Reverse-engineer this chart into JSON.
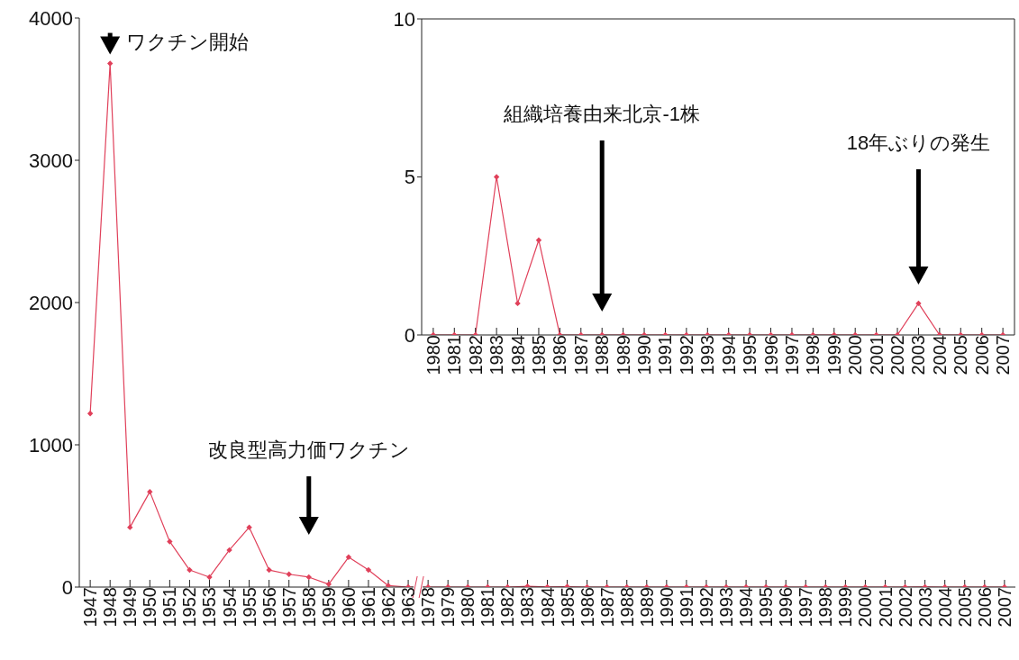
{
  "chart_data": [
    {
      "type": "line",
      "categories": [
        "1947",
        "1948",
        "1949",
        "1950",
        "1951",
        "1952",
        "1953",
        "1954",
        "1955",
        "1956",
        "1957",
        "1958",
        "1959",
        "1960",
        "1961",
        "1962",
        "1963",
        "1978",
        "1979",
        "1980",
        "1981",
        "1982",
        "1983",
        "1984",
        "1985",
        "1986",
        "1987",
        "1988",
        "1989",
        "1990",
        "1991",
        "1992",
        "1993",
        "1994",
        "1995",
        "1996",
        "1997",
        "1998",
        "1999",
        "2000",
        "2001",
        "2002",
        "2003",
        "2004",
        "2005",
        "2006",
        "2007"
      ],
      "values": [
        1220,
        3680,
        420,
        670,
        320,
        120,
        70,
        260,
        420,
        120,
        90,
        70,
        20,
        210,
        120,
        10,
        0,
        0,
        0,
        0,
        0,
        0,
        5,
        1,
        3,
        0,
        0,
        0,
        0,
        0,
        0,
        0,
        0,
        0,
        0,
        0,
        0,
        0,
        0,
        0,
        0,
        0,
        1,
        0,
        0,
        0,
        0
      ],
      "color": "#e0405a",
      "marker": "diamond",
      "ylim": [
        0,
        4000
      ],
      "yticks": [
        0,
        1000,
        2000,
        3000,
        4000
      ],
      "annotations": [
        {
          "text": "ワクチン開始",
          "x": "1948",
          "y": 3680
        },
        "改良型高力価ワクチン"
      ]
    },
    {
      "type": "line",
      "categories": [
        "1980",
        "1981",
        "1982",
        "1983",
        "1984",
        "1985",
        "1986",
        "1987",
        "1988",
        "1989",
        "1990",
        "1991",
        "1992",
        "1993",
        "1994",
        "1995",
        "1996",
        "1997",
        "1998",
        "1999",
        "2000",
        "2001",
        "2002",
        "2003",
        "2004",
        "2005",
        "2006",
        "2007"
      ],
      "values": [
        0,
        0,
        0,
        5,
        1,
        3,
        0,
        0,
        0,
        0,
        0,
        0,
        0,
        0,
        0,
        0,
        0,
        0,
        0,
        0,
        0,
        0,
        0,
        1,
        0,
        0,
        0,
        0
      ],
      "color": "#e0405a",
      "marker": "diamond",
      "ylim": [
        0,
        10
      ],
      "yticks": [
        0,
        5,
        10
      ],
      "annotations": [
        "組織培養由来北京-1株",
        "18年ぶりの発生"
      ]
    }
  ]
}
